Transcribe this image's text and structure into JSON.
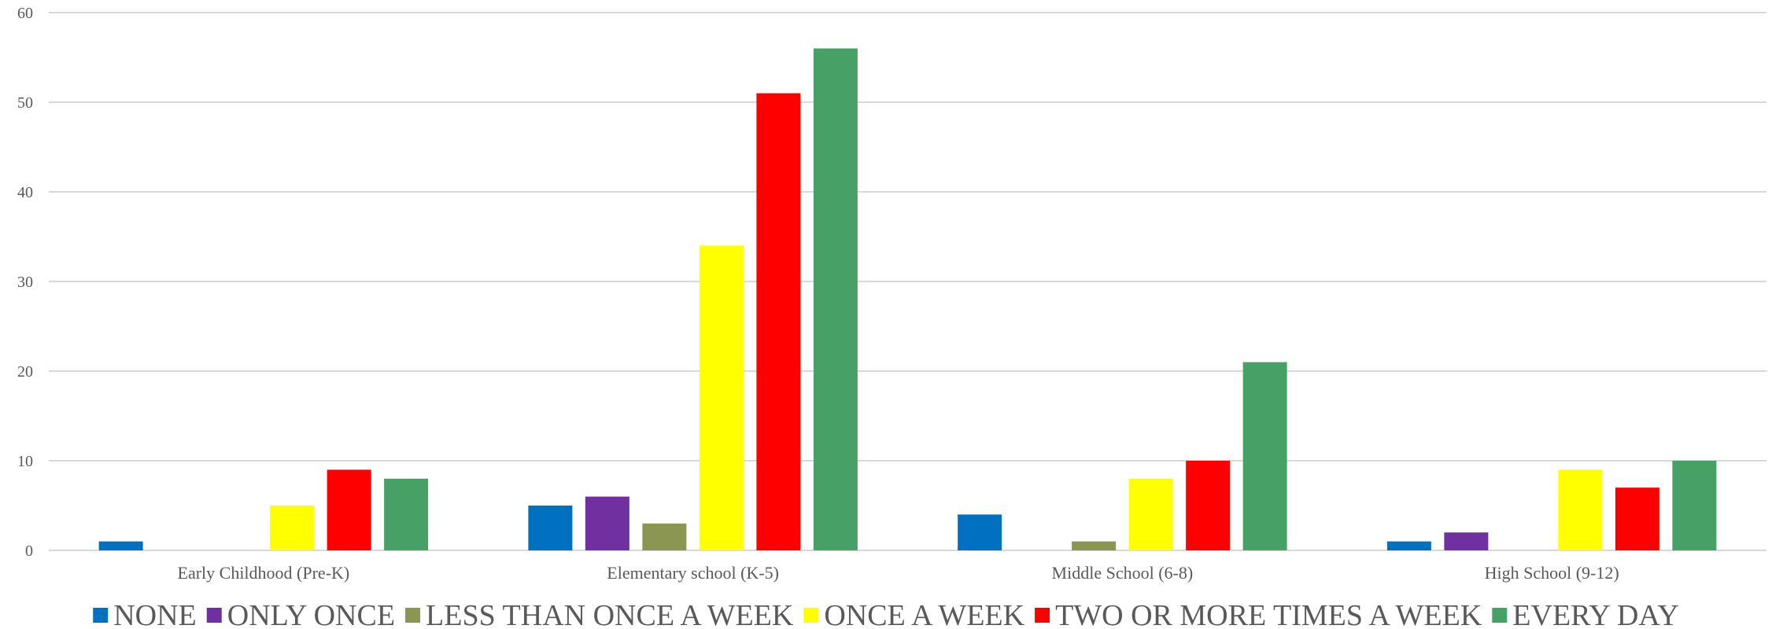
{
  "chart_data": {
    "type": "bar",
    "title": "",
    "xlabel": "",
    "ylabel": "",
    "ylim": [
      0,
      60
    ],
    "yticks": [
      0,
      10,
      20,
      30,
      40,
      50,
      60
    ],
    "grid": true,
    "legend_position": "bottom",
    "categories": [
      "Early Childhood (Pre-K)",
      "Elementary school (K-5)",
      "Middle School (6-8)",
      "High School (9-12)"
    ],
    "series": [
      {
        "name": "NONE",
        "color": "#0070c0",
        "values": [
          1,
          5,
          4,
          1
        ]
      },
      {
        "name": "ONLY ONCE",
        "color": "#7030a0",
        "values": [
          0,
          6,
          0,
          2
        ]
      },
      {
        "name": "LESS THAN ONCE A WEEK",
        "color": "#8b9652",
        "values": [
          0,
          3,
          1,
          0
        ]
      },
      {
        "name": "ONCE A WEEK",
        "color": "#ffff00",
        "values": [
          5,
          34,
          8,
          9
        ]
      },
      {
        "name": "TWO OR MORE TIMES A WEEK",
        "color": "#ff0000",
        "values": [
          9,
          51,
          10,
          7
        ]
      },
      {
        "name": "EVERY DAY",
        "color": "#47a066",
        "values": [
          8,
          56,
          21,
          10
        ]
      }
    ]
  }
}
